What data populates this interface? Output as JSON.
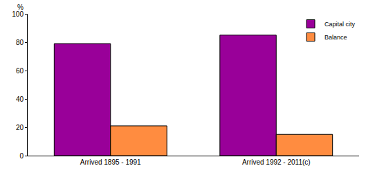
{
  "chart_data": {
    "type": "bar",
    "ylabel": "%",
    "categories": [
      "Arrived 1895 - 1991",
      "Arrived 1992 - 2011(c)"
    ],
    "series": [
      {
        "name": "Capital city",
        "color": "#990099",
        "values": [
          79,
          85
        ]
      },
      {
        "name": "Balance",
        "color": "#ff8c40",
        "values": [
          21,
          15
        ]
      }
    ],
    "ylim": [
      0,
      100
    ],
    "yticks": [
      0,
      20,
      40,
      60,
      80,
      100
    ],
    "grid": true,
    "legend": "top-right"
  }
}
